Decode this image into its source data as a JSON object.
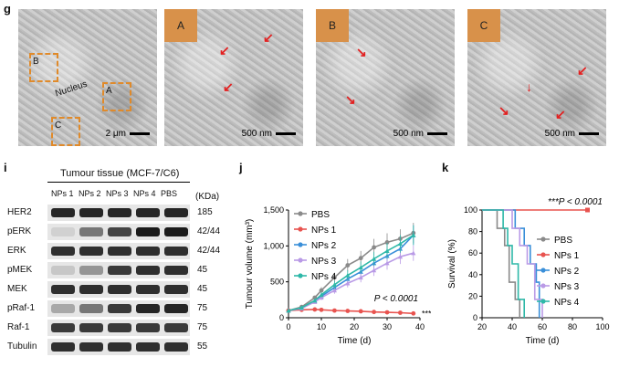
{
  "panel_g": {
    "letter": "g",
    "overview": {
      "nucleus_label": "Nucleus",
      "scale_label": "2 μm",
      "boxes": [
        "B",
        "A",
        "C"
      ]
    },
    "insets": [
      {
        "label": "A",
        "scale_label": "500 nm"
      },
      {
        "label": "B",
        "scale_label": "500 nm"
      },
      {
        "label": "C",
        "scale_label": "500 nm"
      }
    ]
  },
  "panel_i": {
    "letter": "i",
    "title": "Tumour tissue (MCF-7/C6)",
    "lanes": [
      "NPs 1",
      "NPs 2",
      "NPs 3",
      "NPs 4",
      "PBS"
    ],
    "kda_header": "(KDa)",
    "rows": [
      {
        "name": "HER2",
        "kda": "185",
        "intensity": [
          0.95,
          0.95,
          0.95,
          0.95,
          0.95
        ]
      },
      {
        "name": "pERK",
        "kda": "42/44",
        "intensity": [
          0.1,
          0.55,
          0.8,
          1.0,
          1.0
        ]
      },
      {
        "name": "ERK",
        "kda": "42/44",
        "intensity": [
          0.9,
          0.9,
          0.9,
          0.9,
          0.9
        ]
      },
      {
        "name": "pMEK",
        "kda": "45",
        "intensity": [
          0.15,
          0.4,
          0.85,
          0.9,
          0.9
        ]
      },
      {
        "name": "MEK",
        "kda": "45",
        "intensity": [
          0.9,
          0.9,
          0.9,
          0.9,
          0.9
        ]
      },
      {
        "name": "pRaf-1",
        "kda": "75",
        "intensity": [
          0.3,
          0.55,
          0.85,
          0.95,
          0.95
        ]
      },
      {
        "name": "Raf-1",
        "kda": "75",
        "intensity": [
          0.85,
          0.85,
          0.85,
          0.85,
          0.85
        ]
      },
      {
        "name": "Tubulin",
        "kda": "55",
        "intensity": [
          0.9,
          0.9,
          0.9,
          0.9,
          0.9
        ]
      }
    ]
  },
  "chart_data": [
    {
      "type": "line",
      "panel": "j",
      "title": "",
      "xlabel": "Time (d)",
      "ylabel": "Tumour volume (mm³)",
      "xlim": [
        0,
        40
      ],
      "ylim": [
        0,
        1500
      ],
      "xticks": [
        "0",
        "10",
        "20",
        "30",
        "40"
      ],
      "yticks": [
        "0",
        "500",
        "1,000",
        "1,500"
      ],
      "annotation": "P < 0.0001",
      "significance": "***",
      "x": [
        0,
        4,
        8,
        10,
        14,
        18,
        22,
        26,
        30,
        34,
        38
      ],
      "series": [
        {
          "name": "PBS",
          "color": "#8a8a8a",
          "values": [
            100,
            150,
            280,
            380,
            560,
            730,
            830,
            980,
            1050,
            1100,
            1180
          ]
        },
        {
          "name": "NPs 1",
          "color": "#e8534f",
          "values": [
            100,
            110,
            115,
            110,
            100,
            95,
            90,
            80,
            75,
            70,
            60
          ]
        },
        {
          "name": "NPs 2",
          "color": "#3a8fd9",
          "values": [
            100,
            130,
            230,
            300,
            420,
            540,
            640,
            760,
            860,
            960,
            1150
          ]
        },
        {
          "name": "NPs 3",
          "color": "#b99ae6",
          "values": [
            100,
            130,
            220,
            280,
            380,
            480,
            560,
            660,
            760,
            850,
            900
          ]
        },
        {
          "name": "NPs 4",
          "color": "#2eb8a8",
          "values": [
            100,
            140,
            240,
            320,
            460,
            590,
            700,
            820,
            930,
            1030,
            1150
          ]
        }
      ]
    },
    {
      "type": "line",
      "panel": "k",
      "title": "",
      "xlabel": "Time (d)",
      "ylabel": "Survival (%)",
      "xlim": [
        20,
        100
      ],
      "ylim": [
        0,
        100
      ],
      "xticks": [
        "20",
        "40",
        "60",
        "80",
        "100"
      ],
      "yticks": [
        "0",
        "20",
        "40",
        "60",
        "80",
        "100"
      ],
      "annotation": "***P < 0.0001",
      "series": [
        {
          "name": "PBS",
          "color": "#8a8a8a",
          "points": [
            [
              20,
              100
            ],
            [
              30,
              100
            ],
            [
              30,
              83
            ],
            [
              35,
              83
            ],
            [
              35,
              67
            ],
            [
              38,
              67
            ],
            [
              38,
              33
            ],
            [
              42,
              33
            ],
            [
              42,
              17
            ],
            [
              45,
              17
            ],
            [
              45,
              0
            ]
          ]
        },
        {
          "name": "NPs 1",
          "color": "#e8534f",
          "points": [
            [
              20,
              100
            ],
            [
              90,
              100
            ]
          ]
        },
        {
          "name": "NPs 2",
          "color": "#3a8fd9",
          "points": [
            [
              20,
              100
            ],
            [
              42,
              100
            ],
            [
              42,
              83
            ],
            [
              48,
              83
            ],
            [
              48,
              67
            ],
            [
              52,
              67
            ],
            [
              52,
              50
            ],
            [
              56,
              50
            ],
            [
              56,
              33
            ],
            [
              58,
              33
            ],
            [
              58,
              0
            ]
          ]
        },
        {
          "name": "NPs 3",
          "color": "#b99ae6",
          "points": [
            [
              20,
              100
            ],
            [
              40,
              100
            ],
            [
              40,
              83
            ],
            [
              45,
              83
            ],
            [
              45,
              67
            ],
            [
              50,
              67
            ],
            [
              50,
              50
            ],
            [
              55,
              50
            ],
            [
              55,
              17
            ],
            [
              60,
              17
            ],
            [
              60,
              0
            ]
          ]
        },
        {
          "name": "NPs 4",
          "color": "#2eb8a8",
          "points": [
            [
              20,
              100
            ],
            [
              34,
              100
            ],
            [
              34,
              83
            ],
            [
              37,
              83
            ],
            [
              37,
              67
            ],
            [
              40,
              67
            ],
            [
              40,
              50
            ],
            [
              44,
              50
            ],
            [
              44,
              17
            ],
            [
              48,
              17
            ],
            [
              48,
              0
            ]
          ]
        }
      ]
    }
  ]
}
